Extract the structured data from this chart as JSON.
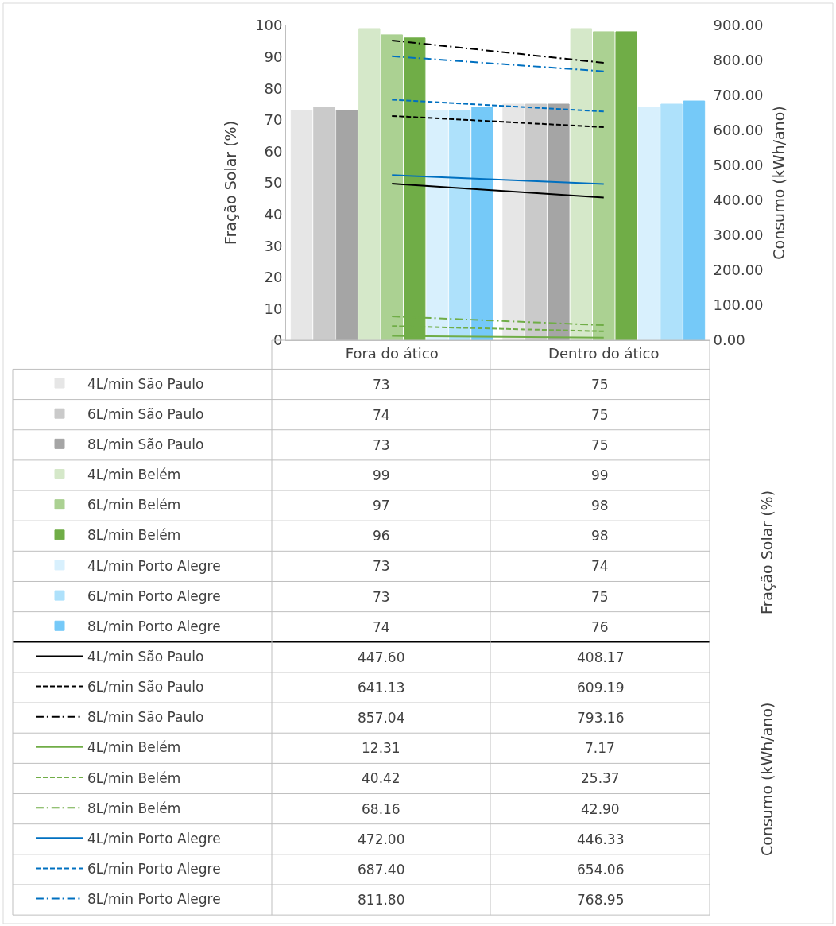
{
  "chart_data": {
    "type": "bar",
    "categories": [
      "Fora do ático",
      "Dentro do ático"
    ],
    "ylabel": "Fração Solar (%)",
    "y2label": "Consumo (kWh/ano)",
    "ylim": [
      0,
      100
    ],
    "yticks": [
      0,
      10,
      20,
      30,
      40,
      50,
      60,
      70,
      80,
      90,
      100
    ],
    "y2lim": [
      0,
      900
    ],
    "y2ticks": [
      {
        "value": 0,
        "label": "0.00"
      },
      {
        "value": 100,
        "label": "100.00"
      },
      {
        "value": 200,
        "label": "200.00"
      },
      {
        "value": 300,
        "label": "300.00"
      },
      {
        "value": 400,
        "label": "400.00"
      },
      {
        "value": 500,
        "label": "500.00"
      },
      {
        "value": 600,
        "label": "600.00"
      },
      {
        "value": 700,
        "label": "700.00"
      },
      {
        "value": 800,
        "label": "800.00"
      },
      {
        "value": 900,
        "label": "900.00"
      }
    ],
    "legend": "bottom",
    "annotations": [
      "Fração Solar (%)",
      "Consumo (kWh/ano)"
    ],
    "series": [
      {
        "name": "4L/min São Paulo",
        "type": "bar",
        "color": "#e6e6e6",
        "values": [
          73,
          75
        ],
        "value_labels": [
          "73",
          "75"
        ]
      },
      {
        "name": "6L/min São Paulo",
        "type": "bar",
        "color": "#cacaca",
        "values": [
          74,
          75
        ],
        "value_labels": [
          "74",
          "75"
        ]
      },
      {
        "name": "8L/min São Paulo",
        "type": "bar",
        "color": "#a5a5a5",
        "values": [
          73,
          75
        ],
        "value_labels": [
          "73",
          "75"
        ]
      },
      {
        "name": "4L/min Belém",
        "type": "bar",
        "color": "#d5e8c9",
        "values": [
          99,
          99
        ],
        "value_labels": [
          "99",
          "99"
        ]
      },
      {
        "name": "6L/min Belém",
        "type": "bar",
        "color": "#abd192",
        "values": [
          97,
          98
        ],
        "value_labels": [
          "97",
          "98"
        ]
      },
      {
        "name": "8L/min Belém",
        "type": "bar",
        "color": "#70ad47",
        "values": [
          96,
          98
        ],
        "value_labels": [
          "96",
          "98"
        ]
      },
      {
        "name": "4L/min Porto Alegre",
        "type": "bar",
        "color": "#d8f0fd",
        "values": [
          73,
          74
        ],
        "value_labels": [
          "73",
          "74"
        ]
      },
      {
        "name": "6L/min Porto Alegre",
        "type": "bar",
        "color": "#aee1fb",
        "values": [
          73,
          75
        ],
        "value_labels": [
          "73",
          "75"
        ]
      },
      {
        "name": "8L/min Porto Alegre",
        "type": "bar",
        "color": "#75c9f8",
        "values": [
          74,
          76
        ],
        "value_labels": [
          "74",
          "76"
        ]
      },
      {
        "name": "4L/min São Paulo",
        "type": "line",
        "axis": "y2",
        "line_style": "solid",
        "color": "#000000",
        "values": [
          447.6,
          408.17
        ],
        "value_labels": [
          "447.60",
          "408.17"
        ]
      },
      {
        "name": "6L/min São Paulo",
        "type": "line",
        "axis": "y2",
        "line_style": "dashed",
        "color": "#000000",
        "values": [
          641.13,
          609.19
        ],
        "value_labels": [
          "641.13",
          "609.19"
        ]
      },
      {
        "name": "8L/min São Paulo",
        "type": "line",
        "axis": "y2",
        "line_style": "dashdot",
        "color": "#000000",
        "values": [
          857.04,
          793.16
        ],
        "value_labels": [
          "857.04",
          "793.16"
        ]
      },
      {
        "name": "4L/min Belém",
        "type": "line",
        "axis": "y2",
        "line_style": "solid",
        "color": "#70ad47",
        "values": [
          12.31,
          7.17
        ],
        "value_labels": [
          "12.31",
          "7.17"
        ]
      },
      {
        "name": "6L/min Belém",
        "type": "line",
        "axis": "y2",
        "line_style": "dashed",
        "color": "#70ad47",
        "values": [
          40.42,
          25.37
        ],
        "value_labels": [
          "40.42",
          "25.37"
        ]
      },
      {
        "name": "8L/min Belém",
        "type": "line",
        "axis": "y2",
        "line_style": "dashdot",
        "color": "#70ad47",
        "values": [
          68.16,
          42.9
        ],
        "value_labels": [
          "68.16",
          "42.90"
        ]
      },
      {
        "name": "4L/min Porto Alegre",
        "type": "line",
        "axis": "y2",
        "line_style": "solid",
        "color": "#0070c0",
        "values": [
          472.0,
          446.33
        ],
        "value_labels": [
          "472.00",
          "446.33"
        ]
      },
      {
        "name": "6L/min Porto Alegre",
        "type": "line",
        "axis": "y2",
        "line_style": "dashed",
        "color": "#0070c0",
        "values": [
          687.4,
          654.06
        ],
        "value_labels": [
          "687.40",
          "654.06"
        ]
      },
      {
        "name": "8L/min Porto Alegre",
        "type": "line",
        "axis": "y2",
        "line_style": "dashdot",
        "color": "#0070c0",
        "values": [
          811.8,
          768.95
        ],
        "value_labels": [
          "811.80",
          "768.95"
        ]
      }
    ]
  }
}
